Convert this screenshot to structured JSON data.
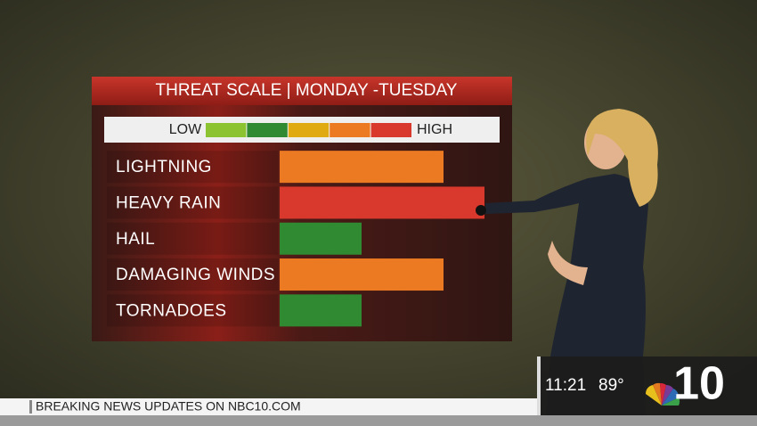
{
  "chart_data": {
    "type": "bar",
    "title": "THREAT SCALE | MONDAY -TUESDAY",
    "scale": {
      "low": "LOW",
      "high": "HIGH",
      "colors": [
        "#8cc431",
        "#2f8a31",
        "#e0ab12",
        "#ec7a22",
        "#d9382d"
      ]
    },
    "categories": [
      "LIGHTNING",
      "HEAVY RAIN",
      "HAIL",
      "DAMAGING WINDS",
      "TORNADOES"
    ],
    "values": [
      4,
      5,
      2,
      4,
      2
    ],
    "colors": [
      "#ec7a22",
      "#d9382d",
      "#2f8a31",
      "#ec7a22",
      "#2f8a31"
    ],
    "xlim": [
      0,
      5
    ]
  },
  "ticker": "BREAKING NEWS UPDATES ON NBC10.COM",
  "time": "11:21",
  "temperature": "89°",
  "channel": "10"
}
